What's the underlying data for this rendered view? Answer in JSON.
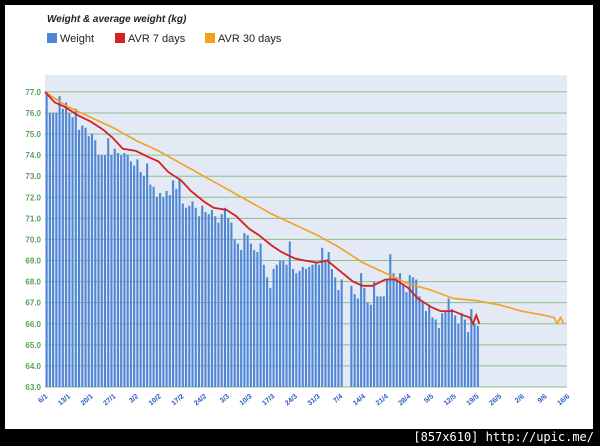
{
  "watermark": "[857x610] http://upic.me/",
  "chart_data": {
    "type": "bar",
    "title": "Weight & average weight (kg)",
    "xlabel": "",
    "ylabel": "",
    "ylim": [
      63.0,
      77.8
    ],
    "yticks": [
      "77.0",
      "76.0",
      "75.0",
      "74.0",
      "73.0",
      "72.0",
      "71.0",
      "70.0",
      "69.0",
      "68.0",
      "67.0",
      "66.0",
      "65.0",
      "64.0",
      "63.0"
    ],
    "xlim": [
      "2013-01-06",
      "2013-06-16"
    ],
    "xticks": [
      {
        "date": "2013-01-06",
        "label": "6/1"
      },
      {
        "date": "2013-01-13",
        "label": "13/1"
      },
      {
        "date": "2013-01-20",
        "label": "20/1"
      },
      {
        "date": "2013-01-27",
        "label": "27/1"
      },
      {
        "date": "2013-02-03",
        "label": "3/2"
      },
      {
        "date": "2013-02-10",
        "label": "10/2"
      },
      {
        "date": "2013-02-17",
        "label": "17/2"
      },
      {
        "date": "2013-02-24",
        "label": "24/2"
      },
      {
        "date": "2013-03-03",
        "label": "3/3"
      },
      {
        "date": "2013-03-10",
        "label": "10/3"
      },
      {
        "date": "2013-03-17",
        "label": "17/3"
      },
      {
        "date": "2013-03-24",
        "label": "24/3"
      },
      {
        "date": "2013-03-31",
        "label": "31/3"
      },
      {
        "date": "2013-04-07",
        "label": "7/4"
      },
      {
        "date": "2013-04-14",
        "label": "14/4"
      },
      {
        "date": "2013-04-21",
        "label": "21/4"
      },
      {
        "date": "2013-04-28",
        "label": "28/4"
      },
      {
        "date": "2013-05-05",
        "label": "5/5"
      },
      {
        "date": "2013-05-12",
        "label": "12/5"
      },
      {
        "date": "2013-05-19",
        "label": "19/5"
      },
      {
        "date": "2013-05-26",
        "label": "26/5"
      },
      {
        "date": "2013-06-02",
        "label": "2/6"
      },
      {
        "date": "2013-06-09",
        "label": "9/6"
      },
      {
        "date": "2013-06-16",
        "label": "16/6"
      }
    ],
    "legend_position": "top-left",
    "grid": true,
    "colors": {
      "plot_bg": "#e3e9f5",
      "grid": "#8bbf8b",
      "axis_labels": "#5aa05a",
      "date_labels": "#2a5cc4"
    },
    "series": [
      {
        "name": "Weight",
        "kind": "bar",
        "color": "#4f86d6",
        "start": "2013-01-06",
        "values": [
          77.0,
          76.0,
          76.0,
          76.0,
          76.8,
          76.2,
          76.5,
          76.0,
          75.8,
          76.2,
          75.2,
          75.4,
          75.3,
          74.9,
          75.0,
          74.7,
          74.0,
          74.0,
          74.0,
          74.8,
          74.0,
          74.3,
          74.1,
          74.0,
          74.1,
          74.0,
          73.7,
          73.5,
          73.8,
          73.2,
          73.0,
          73.6,
          72.6,
          72.5,
          72.0,
          72.2,
          72.0,
          72.3,
          72.1,
          72.8,
          72.4,
          72.9,
          71.7,
          71.5,
          71.6,
          71.8,
          71.5,
          71.1,
          71.6,
          71.3,
          71.2,
          71.4,
          71.1,
          70.8,
          71.2,
          71.5,
          71.0,
          70.8,
          70.0,
          69.8,
          69.5,
          70.3,
          70.2,
          69.8,
          69.5,
          69.4,
          69.8,
          68.8,
          68.2,
          67.7,
          68.6,
          68.8,
          69.0,
          69.0,
          68.8,
          69.9,
          68.6,
          68.4,
          68.5,
          68.7,
          68.6,
          68.7,
          68.8,
          68.9,
          68.8,
          69.6,
          69.0,
          69.4,
          68.6,
          68.2,
          67.6,
          68.1,
          67.8,
          67.4,
          67.2,
          68.4,
          67.7,
          67.0,
          66.9,
          68.0,
          67.3,
          67.3,
          67.3,
          68.1,
          69.3,
          68.4,
          68.2,
          68.4,
          67.9,
          67.5,
          68.3,
          68.2,
          68.1,
          67.3,
          67.0,
          66.6,
          66.9,
          66.3,
          66.2,
          65.8,
          66.5,
          66.6,
          67.2,
          66.7,
          66.4,
          66.0,
          66.5,
          66.2,
          65.6,
          66.7,
          66.0,
          65.9
        ],
        "missing_dates": [
          "2013-04-08",
          "2013-04-09"
        ]
      },
      {
        "name": "AVR 7 days",
        "kind": "line",
        "color": "#d42020",
        "points": [
          [
            "2013-01-06",
            77.0
          ],
          [
            "2013-01-09",
            76.5
          ],
          [
            "2013-01-12",
            76.3
          ],
          [
            "2013-01-16",
            75.9
          ],
          [
            "2013-01-20",
            75.6
          ],
          [
            "2013-01-24",
            75.2
          ],
          [
            "2013-01-27",
            74.8
          ],
          [
            "2013-01-30",
            74.3
          ],
          [
            "2013-02-03",
            74.2
          ],
          [
            "2013-02-07",
            73.9
          ],
          [
            "2013-02-10",
            73.7
          ],
          [
            "2013-02-13",
            73.2
          ],
          [
            "2013-02-17",
            72.8
          ],
          [
            "2013-02-20",
            72.3
          ],
          [
            "2013-02-24",
            71.8
          ],
          [
            "2013-02-27",
            71.5
          ],
          [
            "2013-03-03",
            71.4
          ],
          [
            "2013-03-06",
            71.1
          ],
          [
            "2013-03-10",
            70.5
          ],
          [
            "2013-03-13",
            70.2
          ],
          [
            "2013-03-17",
            69.7
          ],
          [
            "2013-03-20",
            69.4
          ],
          [
            "2013-03-24",
            69.1
          ],
          [
            "2013-03-27",
            69.0
          ],
          [
            "2013-03-31",
            68.9
          ],
          [
            "2013-04-03",
            69.0
          ],
          [
            "2013-04-07",
            68.5
          ],
          [
            "2013-04-11",
            68.0
          ],
          [
            "2013-04-14",
            67.8
          ],
          [
            "2013-04-17",
            67.8
          ],
          [
            "2013-04-21",
            68.1
          ],
          [
            "2013-04-24",
            68.1
          ],
          [
            "2013-04-28",
            67.7
          ],
          [
            "2013-05-01",
            67.2
          ],
          [
            "2013-05-05",
            66.8
          ],
          [
            "2013-05-08",
            66.6
          ],
          [
            "2013-05-12",
            66.6
          ],
          [
            "2013-05-15",
            66.4
          ],
          [
            "2013-05-17",
            66.3
          ],
          [
            "2013-05-18",
            66.0
          ],
          [
            "2013-05-19",
            66.4
          ],
          [
            "2013-05-20",
            66.0
          ]
        ]
      },
      {
        "name": "AVR 30 days",
        "kind": "line",
        "color": "#f4a020",
        "points": [
          [
            "2013-01-06",
            77.0
          ],
          [
            "2013-01-13",
            76.3
          ],
          [
            "2013-01-20",
            75.8
          ],
          [
            "2013-01-27",
            75.3
          ],
          [
            "2013-02-03",
            74.7
          ],
          [
            "2013-02-10",
            74.2
          ],
          [
            "2013-02-17",
            73.6
          ],
          [
            "2013-02-24",
            73.0
          ],
          [
            "2013-03-03",
            72.4
          ],
          [
            "2013-03-10",
            71.8
          ],
          [
            "2013-03-17",
            71.2
          ],
          [
            "2013-03-24",
            70.7
          ],
          [
            "2013-03-31",
            70.2
          ],
          [
            "2013-04-07",
            69.6
          ],
          [
            "2013-04-14",
            68.9
          ],
          [
            "2013-04-21",
            68.4
          ],
          [
            "2013-04-28",
            67.9
          ],
          [
            "2013-05-05",
            67.6
          ],
          [
            "2013-05-12",
            67.2
          ],
          [
            "2013-05-19",
            67.1
          ],
          [
            "2013-05-26",
            66.9
          ],
          [
            "2013-06-02",
            66.6
          ],
          [
            "2013-06-09",
            66.4
          ],
          [
            "2013-06-12",
            66.3
          ],
          [
            "2013-06-13",
            66.0
          ],
          [
            "2013-06-14",
            66.3
          ],
          [
            "2013-06-15",
            66.0
          ]
        ]
      }
    ]
  }
}
